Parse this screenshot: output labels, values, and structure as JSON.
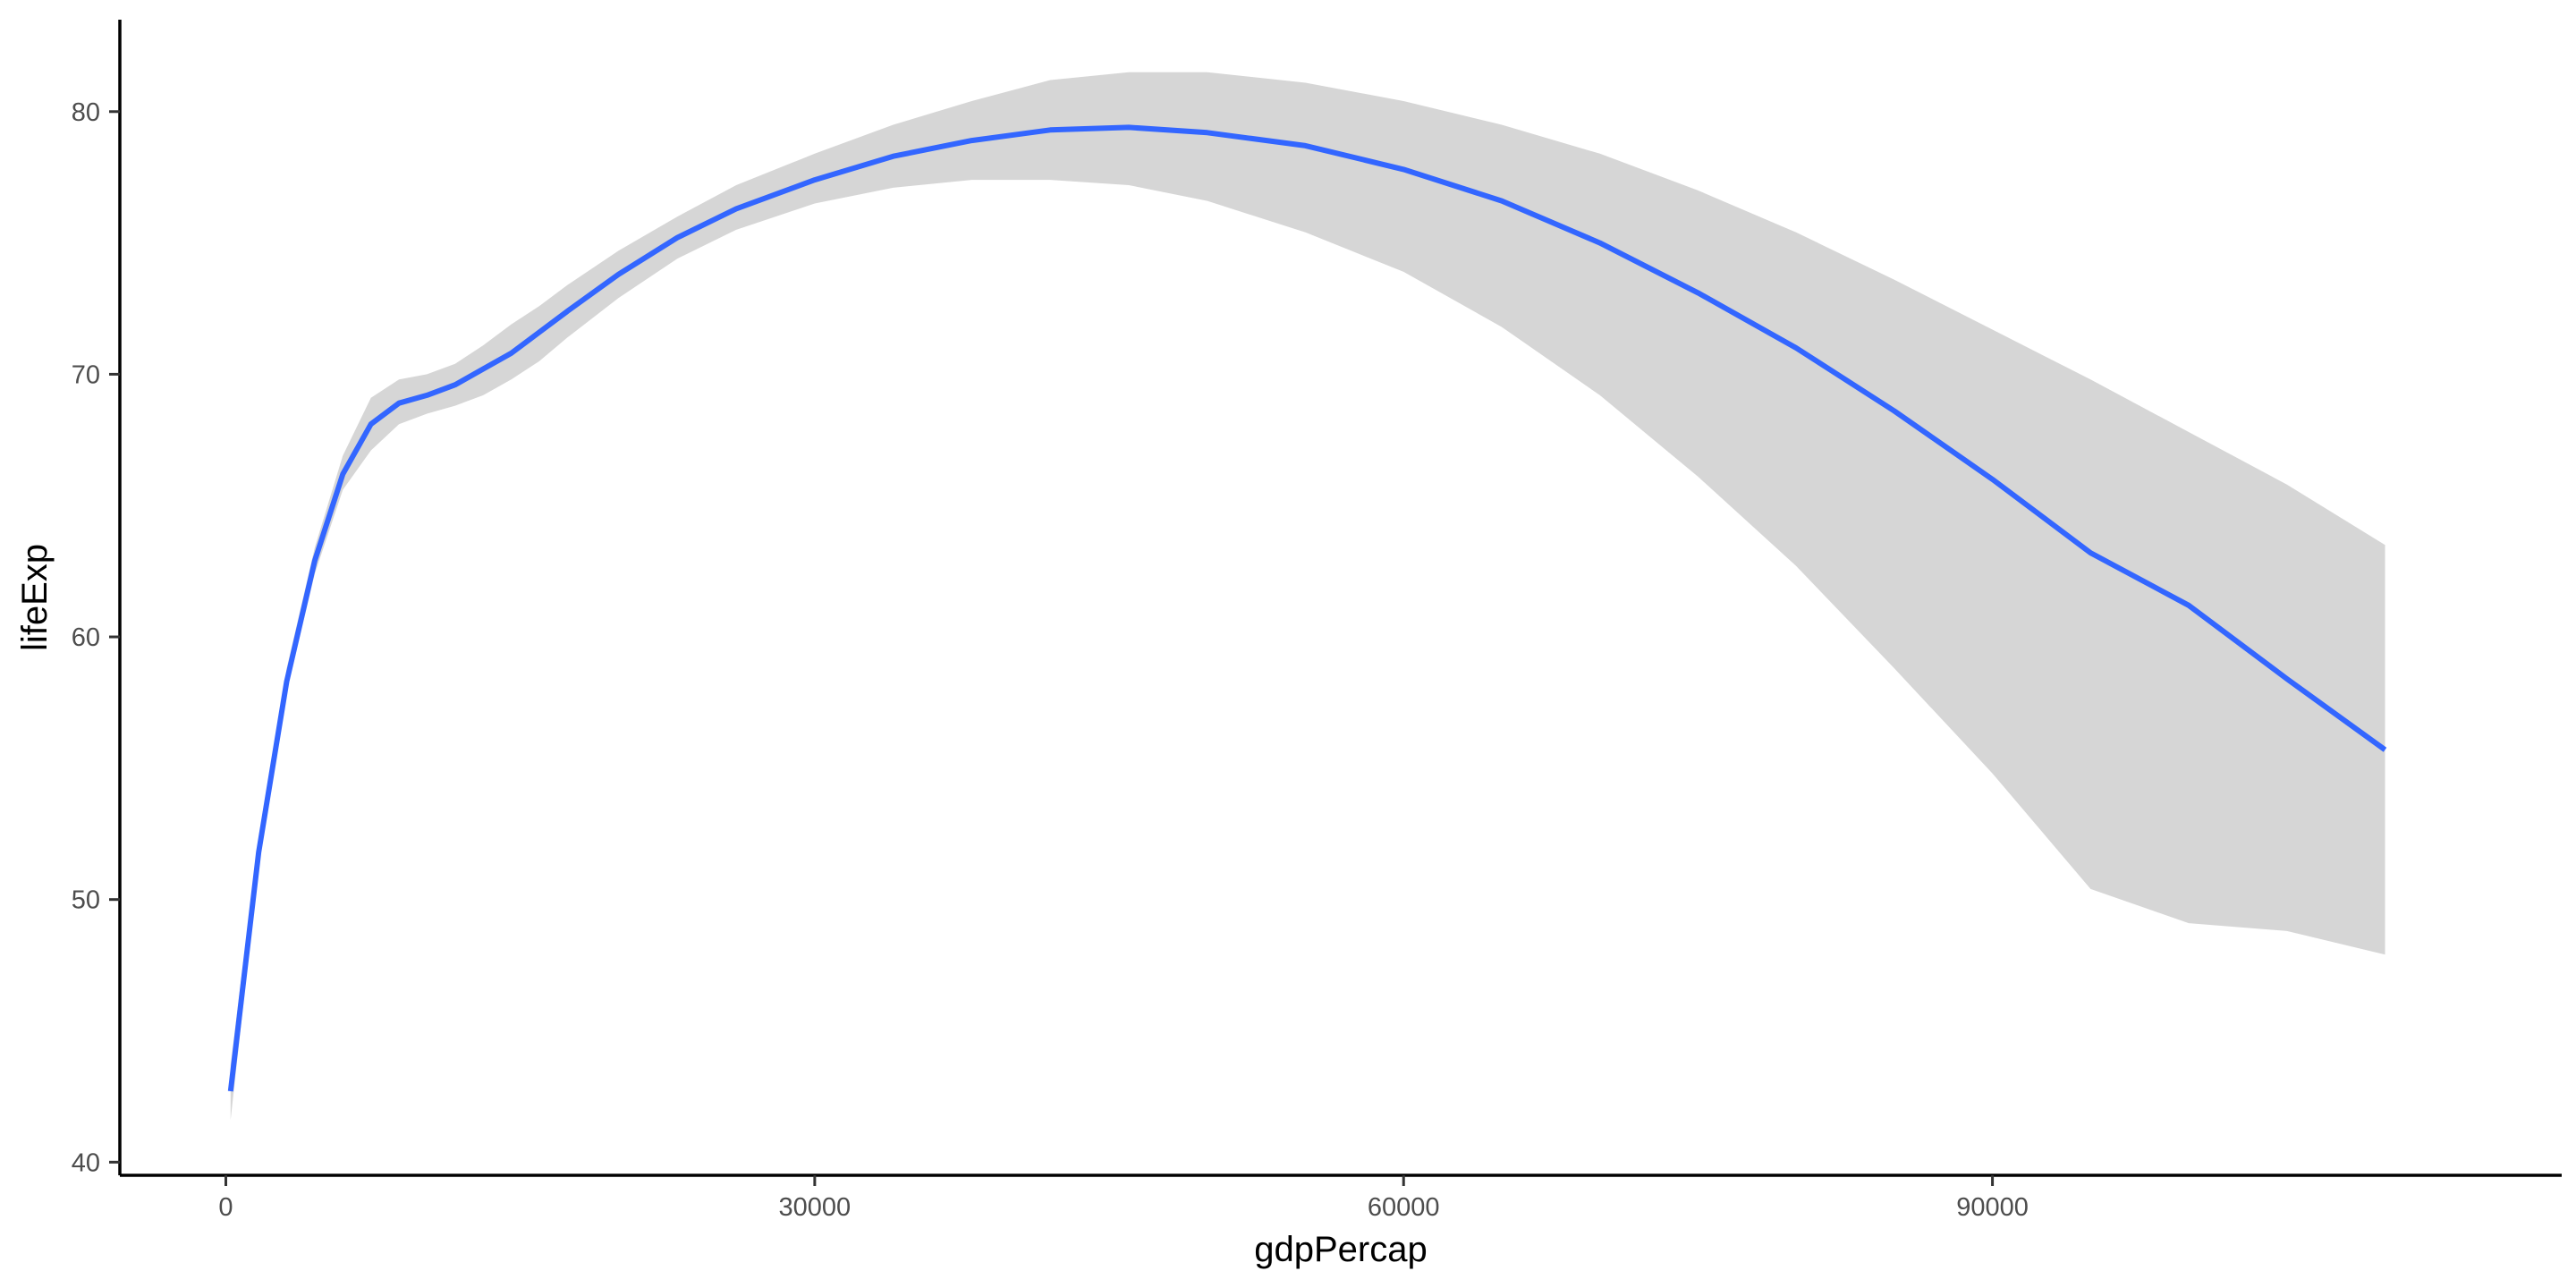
{
  "chart_data": {
    "type": "line",
    "title": "",
    "xlabel": "gdpPercap",
    "ylabel": "lifeExp",
    "xlim": [
      -5400,
      119000
    ],
    "ylim": [
      39.5,
      83.5
    ],
    "x_ticks": [
      0,
      30000,
      60000,
      90000
    ],
    "y_ticks": [
      40,
      50,
      60,
      70,
      80
    ],
    "grid": false,
    "legend": "none",
    "series": [
      {
        "type": "smooth",
        "color": "#3366ff",
        "points": [
          {
            "x": 241,
            "y": 42.7,
            "lower": 41.6,
            "upper": 43.7
          },
          {
            "x": 1670,
            "y": 51.8,
            "lower": 51.3,
            "upper": 52.4
          },
          {
            "x": 3100,
            "y": 58.3,
            "lower": 57.9,
            "upper": 58.8
          },
          {
            "x": 4530,
            "y": 62.9,
            "lower": 62.4,
            "upper": 63.4
          },
          {
            "x": 5960,
            "y": 66.2,
            "lower": 65.6,
            "upper": 66.9
          },
          {
            "x": 7390,
            "y": 68.1,
            "lower": 67.1,
            "upper": 69.1
          },
          {
            "x": 8820,
            "y": 68.9,
            "lower": 68.1,
            "upper": 69.8
          },
          {
            "x": 10250,
            "y": 69.2,
            "lower": 68.5,
            "upper": 70.0
          },
          {
            "x": 11680,
            "y": 69.6,
            "lower": 68.8,
            "upper": 70.4
          },
          {
            "x": 13110,
            "y": 70.2,
            "lower": 69.2,
            "upper": 71.1
          },
          {
            "x": 14540,
            "y": 70.8,
            "lower": 69.8,
            "upper": 71.9
          },
          {
            "x": 15970,
            "y": 71.6,
            "lower": 70.5,
            "upper": 72.6
          },
          {
            "x": 17400,
            "y": 72.4,
            "lower": 71.4,
            "upper": 73.4
          },
          {
            "x": 20000,
            "y": 73.8,
            "lower": 72.9,
            "upper": 74.7
          },
          {
            "x": 23000,
            "y": 75.2,
            "lower": 74.4,
            "upper": 76.0
          },
          {
            "x": 26000,
            "y": 76.3,
            "lower": 75.5,
            "upper": 77.2
          },
          {
            "x": 30000,
            "y": 77.4,
            "lower": 76.5,
            "upper": 78.4
          },
          {
            "x": 34000,
            "y": 78.3,
            "lower": 77.1,
            "upper": 79.5
          },
          {
            "x": 38000,
            "y": 78.9,
            "lower": 77.4,
            "upper": 80.4
          },
          {
            "x": 42000,
            "y": 79.3,
            "lower": 77.4,
            "upper": 81.2
          },
          {
            "x": 46000,
            "y": 79.4,
            "lower": 77.2,
            "upper": 81.5
          },
          {
            "x": 50000,
            "y": 79.2,
            "lower": 76.6,
            "upper": 81.5
          },
          {
            "x": 55000,
            "y": 78.7,
            "lower": 75.4,
            "upper": 81.1
          },
          {
            "x": 60000,
            "y": 77.8,
            "lower": 73.9,
            "upper": 80.4
          },
          {
            "x": 65000,
            "y": 76.6,
            "lower": 71.8,
            "upper": 79.5
          },
          {
            "x": 70000,
            "y": 75.0,
            "lower": 69.2,
            "upper": 78.4
          },
          {
            "x": 75000,
            "y": 73.1,
            "lower": 66.1,
            "upper": 77.0
          },
          {
            "x": 80000,
            "y": 71.0,
            "lower": 62.7,
            "upper": 75.4
          },
          {
            "x": 85000,
            "y": 68.6,
            "lower": 58.8,
            "upper": 73.6
          },
          {
            "x": 90000,
            "y": 66.0,
            "lower": 54.8,
            "upper": 71.7
          },
          {
            "x": 95000,
            "y": 63.2,
            "lower": 50.4,
            "upper": 69.8
          },
          {
            "x": 100000,
            "y": 61.2,
            "lower": 49.1,
            "upper": 67.8
          },
          {
            "x": 105000,
            "y": 58.4,
            "lower": 48.8,
            "upper": 65.8
          },
          {
            "x": 110000,
            "y": 55.7,
            "lower": 47.9,
            "upper": 63.5
          }
        ]
      }
    ]
  }
}
